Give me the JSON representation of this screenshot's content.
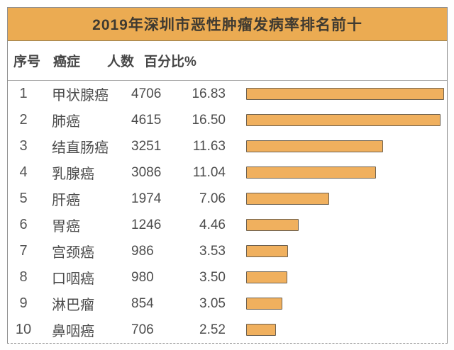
{
  "title": "2019年深圳市恶性肿瘤发病率排名前十",
  "columns": {
    "rank": "序号",
    "cancer": "癌症",
    "count": "人数",
    "percent": "百分比%"
  },
  "rows": [
    {
      "rank": "1",
      "name": "甲状腺癌",
      "count": "4706",
      "percent": "16.83"
    },
    {
      "rank": "2",
      "name": "肺癌",
      "count": "4615",
      "percent": "16.50"
    },
    {
      "rank": "3",
      "name": "结直肠癌",
      "count": "3251",
      "percent": "11.63"
    },
    {
      "rank": "4",
      "name": "乳腺癌",
      "count": "3086",
      "percent": "11.04"
    },
    {
      "rank": "5",
      "name": "肝癌",
      "count": "1974",
      "percent": "7.06"
    },
    {
      "rank": "6",
      "name": "胃癌",
      "count": "1246",
      "percent": "4.46"
    },
    {
      "rank": "7",
      "name": "宫颈癌",
      "count": "986",
      "percent": "3.53"
    },
    {
      "rank": "8",
      "name": "口咽癌",
      "count": "980",
      "percent": "3.50"
    },
    {
      "rank": "9",
      "name": "淋巴瘤",
      "count": "854",
      "percent": "3.05"
    },
    {
      "rank": "10",
      "name": "鼻咽癌",
      "count": "706",
      "percent": "2.52"
    }
  ],
  "colors": {
    "banner": "#ebab52",
    "bar_fill": "#f0b05e",
    "bar_border": "#6d6150",
    "frame_border": "#8f8f8f",
    "title_text": "#3f3a31"
  },
  "chart_data": {
    "type": "bar",
    "orientation": "horizontal",
    "title": "2019年深圳市恶性肿瘤发病率排名前十",
    "categories": [
      "甲状腺癌",
      "肺癌",
      "结直肠癌",
      "乳腺癌",
      "肝癌",
      "胃癌",
      "宫颈癌",
      "口咽癌",
      "淋巴瘤",
      "鼻咽癌"
    ],
    "series": [
      {
        "name": "人数",
        "values": [
          4706,
          4615,
          3251,
          3086,
          1974,
          1246,
          986,
          980,
          854,
          706
        ]
      },
      {
        "name": "百分比%",
        "values": [
          16.83,
          16.5,
          11.63,
          11.04,
          7.06,
          4.46,
          3.53,
          3.5,
          3.05,
          2.52
        ]
      }
    ],
    "bar_series": "百分比%",
    "xlabel": "",
    "ylabel": "",
    "xlim": [
      0,
      17
    ],
    "grid": false,
    "legend": false
  }
}
